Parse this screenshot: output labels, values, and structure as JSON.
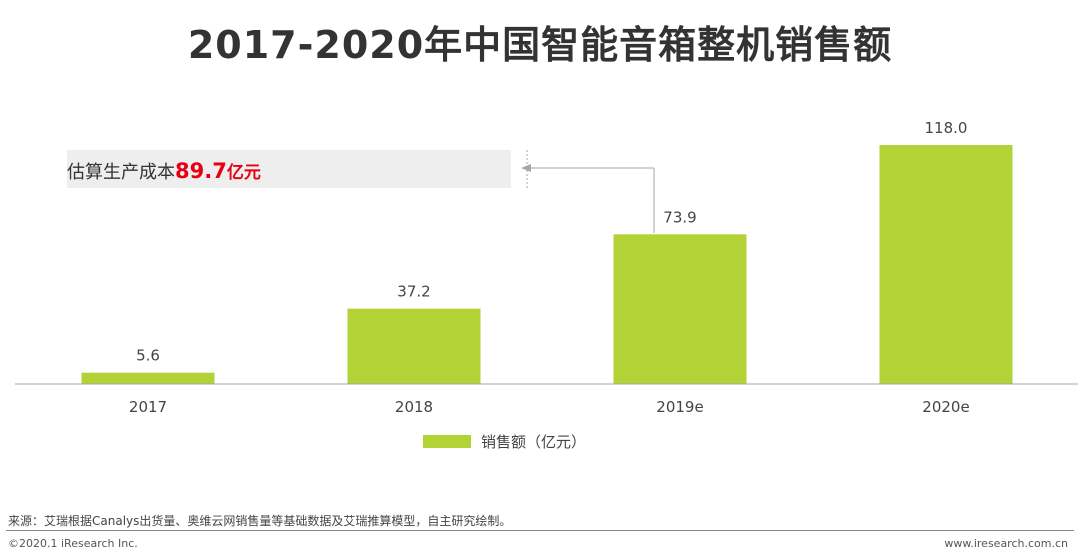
{
  "title": "2017-2020年中国智能音箱整机销售额",
  "annotation": {
    "label": "估算生产成本",
    "value": "89.7",
    "unit": "亿元"
  },
  "legend": {
    "label": "销售额（亿元）"
  },
  "source": "来源：艾瑞根据Canalys出货量、奥维云网销售量等基础数据及艾瑞推算模型，自主研究绘制。",
  "copyright": "©2020.1 iResearch Inc.",
  "website": "www.iresearch.com.cn",
  "colors": {
    "bar": "#b2d235",
    "highlight": "#e60012"
  },
  "chart_data": {
    "type": "bar",
    "categories": [
      "2017",
      "2018",
      "2019e",
      "2020e"
    ],
    "series": [
      {
        "name": "销售额（亿元）",
        "values": [
          5.6,
          37.2,
          73.9,
          118.0
        ]
      }
    ],
    "data_labels": [
      "5.6",
      "37.2",
      "73.9",
      "118.0"
    ],
    "title": "2017-2020年中国智能音箱整机销售额",
    "ylim": [
      0,
      118.0
    ],
    "grid": false,
    "legend_position": "bottom"
  }
}
